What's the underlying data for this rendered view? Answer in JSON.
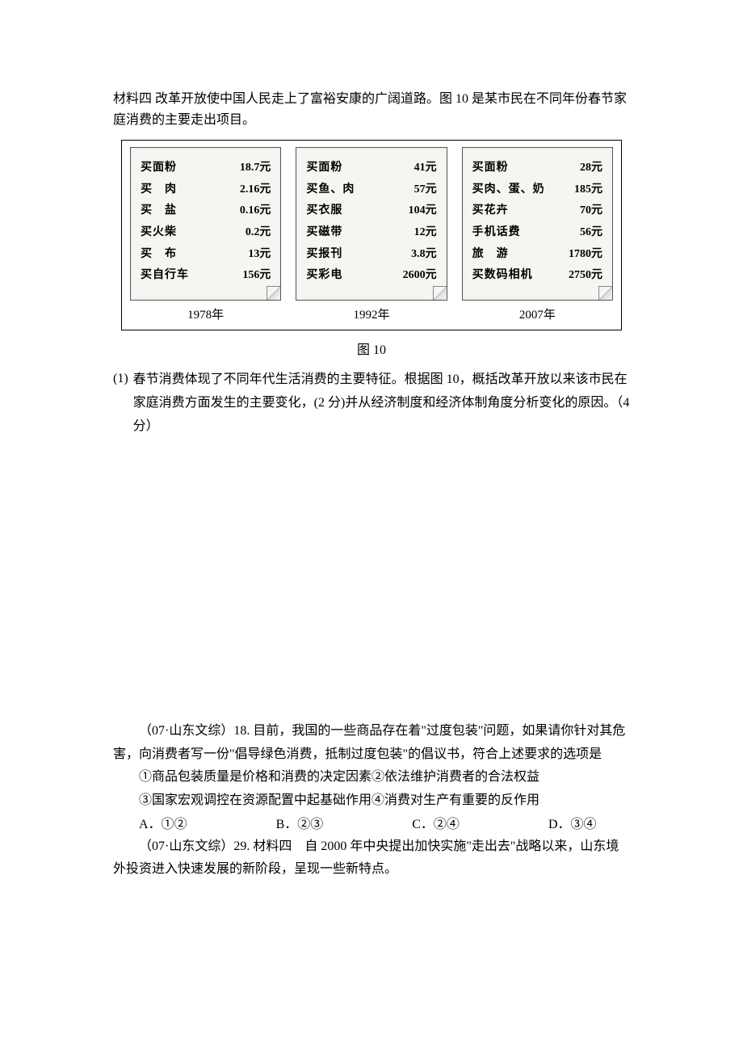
{
  "intro": "材料四 改革开放使中国人民走上了富裕安康的广阔道路。图 10 是某市民在不同年份春节家庭消费的主要走出项目。",
  "figure": {
    "caption": "图 10",
    "background_color": "#ffffff",
    "border_color": "#000000",
    "note_bg_color": "#f5f5f2",
    "note_border_color": "#555555",
    "years": [
      "1978年",
      "1992年",
      "2007年"
    ],
    "notes": [
      {
        "items": [
          {
            "label": "买面粉",
            "value": "18.7元"
          },
          {
            "label": "买　肉",
            "value": "2.16元"
          },
          {
            "label": "买　盐",
            "value": "0.16元"
          },
          {
            "label": "买火柴",
            "value": "0.2元"
          },
          {
            "label": "买　布",
            "value": "13元"
          },
          {
            "label": "买自行车",
            "value": "156元"
          }
        ]
      },
      {
        "items": [
          {
            "label": "买面粉",
            "value": "41元"
          },
          {
            "label": "买鱼、肉",
            "value": "57元"
          },
          {
            "label": "买衣服",
            "value": "104元"
          },
          {
            "label": "买磁带",
            "value": "12元"
          },
          {
            "label": "买报刊",
            "value": "3.8元"
          },
          {
            "label": "买彩电",
            "value": "2600元"
          }
        ]
      },
      {
        "items": [
          {
            "label": "买面粉",
            "value": "28元"
          },
          {
            "label": "买肉、蛋、奶",
            "value": "185元"
          },
          {
            "label": "买花卉",
            "value": "70元"
          },
          {
            "label": "手机话费",
            "value": "56元"
          },
          {
            "label": "旅　游",
            "value": "1780元"
          },
          {
            "label": "买数码相机",
            "value": "2750元"
          }
        ]
      }
    ]
  },
  "q1": {
    "num": "(1)",
    "text": "春节消费体现了不同年代生活消费的主要特征。根据图 10，概括改革开放以来该市民在家庭消费方面发生的主要变化，(2 分)并从经济制度和经济体制角度分析变化的原因。（4 分）"
  },
  "q18": {
    "header": "（07·山东文综）18. 目前，我国的一些商品存在着\"过度包装\"问题，如果请你针对其危害，向消费者写一份\"倡导绿色消费，抵制过度包装\"的倡议书，符合上述要求的选项是",
    "line1": "①商品包装质量是价格和消费的决定因素②依法维护消费者的合法权益",
    "line2": "③国家宏观调控在资源配置中起基础作用④消费对生产有重要的反作用",
    "options": {
      "a": "A．①②",
      "b": "B．②③",
      "c": "C．②④",
      "d": "D．③④"
    }
  },
  "q29": {
    "text": "（07·山东文综）29. 材料四　自 2000 年中央提出加快实施\"走出去\"战略以来，山东境外投资进入快速发展的新阶段，呈现一些新特点。"
  }
}
